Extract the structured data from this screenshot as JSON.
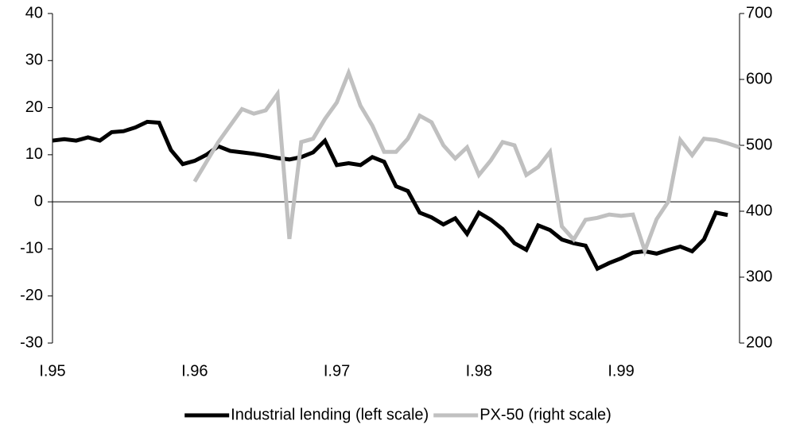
{
  "chart_data": {
    "type": "line",
    "categories": [
      "I.95",
      null,
      null,
      null,
      null,
      null,
      null,
      null,
      null,
      null,
      null,
      null,
      "I.96",
      null,
      null,
      null,
      null,
      null,
      null,
      null,
      null,
      null,
      null,
      null,
      "I.97",
      null,
      null,
      null,
      null,
      null,
      null,
      null,
      null,
      null,
      null,
      null,
      "I.98",
      null,
      null,
      null,
      null,
      null,
      null,
      null,
      null,
      null,
      null,
      null,
      "I.99",
      null,
      null,
      null,
      null,
      null,
      null,
      null,
      null,
      null,
      null
    ],
    "series": [
      {
        "name": "Industrial lending (left scale)",
        "color": "#000000",
        "axis": "y",
        "values": [
          13,
          13.3,
          13,
          13.7,
          13,
          14.8,
          15,
          15.8,
          17,
          16.8,
          11,
          8,
          8.7,
          10,
          11.8,
          10.8,
          10.5,
          10.2,
          9.8,
          9.3,
          9,
          9.5,
          10.5,
          13,
          7.8,
          8.2,
          7.8,
          9.5,
          8.5,
          3.3,
          2.3,
          -2.3,
          -3.3,
          -4.8,
          -3.5,
          -6.8,
          -2.3,
          -3.8,
          -5.8,
          -8.8,
          -10.2,
          -5,
          -6,
          -8,
          -8.8,
          -9.3,
          -14.2,
          -13,
          -12,
          -10.8,
          -10.5,
          -11,
          -10.2,
          -9.5,
          -10.5,
          -8,
          -2.3,
          -2.8,
          null
        ]
      },
      {
        "name": "PX-50 (right scale)",
        "color": "#c0c0c0",
        "axis": "y2",
        "values": [
          null,
          null,
          null,
          null,
          null,
          null,
          null,
          null,
          null,
          null,
          null,
          null,
          445,
          475,
          505,
          530,
          555,
          548,
          553,
          578,
          358,
          505,
          510,
          540,
          565,
          610,
          560,
          530,
          490,
          490,
          510,
          545,
          535,
          500,
          480,
          497,
          455,
          477,
          505,
          500,
          455,
          467,
          490,
          377,
          357,
          387,
          390,
          395,
          393,
          395,
          340,
          388,
          415,
          508,
          485,
          510,
          508,
          503,
          497
        ]
      }
    ],
    "ylim": [
      -30,
      40
    ],
    "yticks": [
      -30,
      -20,
      -10,
      0,
      10,
      20,
      30,
      40
    ],
    "y2lim": [
      200,
      700
    ],
    "y2ticks": [
      200,
      300,
      400,
      500,
      600,
      700
    ]
  }
}
